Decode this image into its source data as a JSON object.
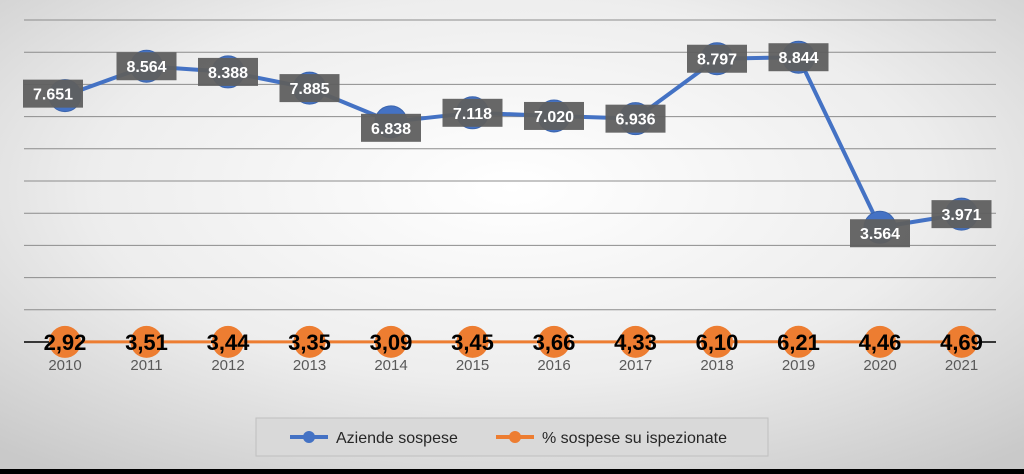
{
  "chart_data": {
    "type": "line",
    "categories": [
      "2010",
      "2011",
      "2012",
      "2013",
      "2014",
      "2015",
      "2016",
      "2017",
      "2018",
      "2019",
      "2020",
      "2021"
    ],
    "series": [
      {
        "name": "Aziende sospese",
        "values": [
          7651,
          8564,
          8388,
          7885,
          6838,
          7118,
          7020,
          6936,
          8797,
          8844,
          3564,
          3971
        ],
        "labels": [
          "7.651",
          "8.564",
          "8.388",
          "7.885",
          "6.838",
          "7.118",
          "7.020",
          "6.936",
          "8.797",
          "8.844",
          "3.564",
          "3.971"
        ],
        "color": "#4472C4",
        "label_style": "white text on dark grey boxes"
      },
      {
        "name": "% sospese su ispezionate",
        "values": [
          2.92,
          3.51,
          3.44,
          3.35,
          3.09,
          3.45,
          3.66,
          4.33,
          6.1,
          6.21,
          4.46,
          4.69
        ],
        "labels": [
          "2,92",
          "3,51",
          "3,44",
          "3,35",
          "3,09",
          "3,45",
          "3,66",
          "4,33",
          "6,10",
          "6,21",
          "4,46",
          "4,69"
        ],
        "color": "#ED7D31",
        "label_style": "bold black text over orange markers"
      }
    ],
    "ylim": [
      0,
      10000
    ],
    "grid": true,
    "y_tick_labels_visible": false,
    "legend_position": "bottom-center",
    "background": "light grey radial gradient"
  }
}
